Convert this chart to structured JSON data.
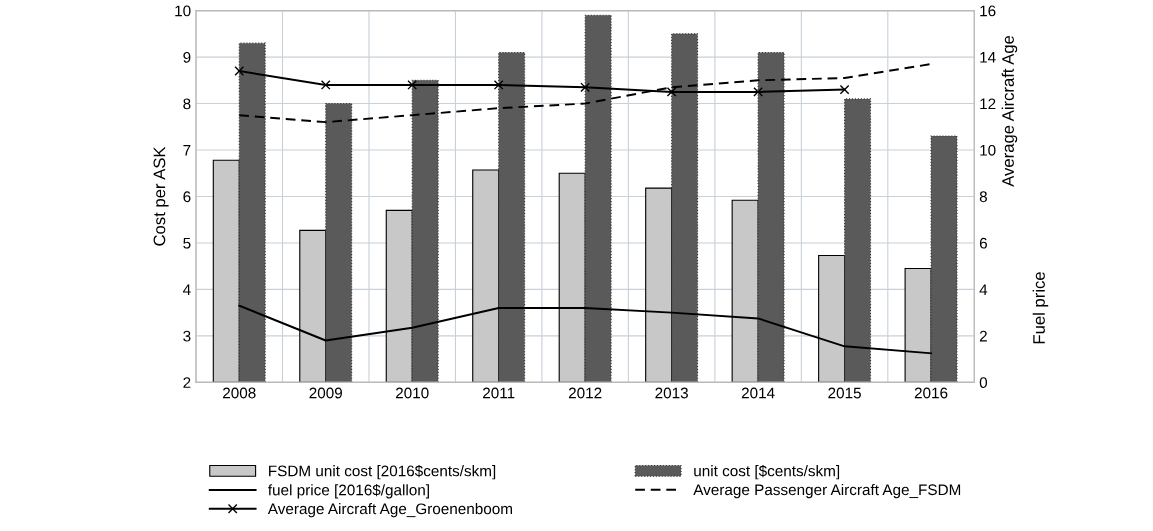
{
  "chart_data": {
    "type": "bar",
    "categories": [
      "2008",
      "2009",
      "2010",
      "2011",
      "2012",
      "2013",
      "2014",
      "2015",
      "2016"
    ],
    "ylabel": "Cost per ASK",
    "y2label": "Average Aircraft Age",
    "annotations": [
      "Fuel price"
    ],
    "ylim": [
      2,
      10
    ],
    "yticks": [
      2,
      3,
      4,
      5,
      6,
      7,
      8,
      9,
      10
    ],
    "y2lim": [
      0,
      16
    ],
    "y2ticks": [
      0,
      2,
      4,
      6,
      8,
      10,
      12,
      14,
      16
    ],
    "grid": true,
    "legend": "bottom",
    "series": [
      {
        "name": "FSDM unit cost [2016$cents/skm]",
        "color": "#c8c8c8",
        "values": [
          6.78,
          5.27,
          5.7,
          6.57,
          6.5,
          6.18,
          5.92,
          4.73,
          4.45
        ]
      },
      {
        "name": "unit cost [$cents/skm]",
        "color": "#5a5a5a",
        "values": [
          9.3,
          8.0,
          8.5,
          9.1,
          9.9,
          9.5,
          9.1,
          8.1,
          7.3
        ]
      },
      {
        "name": "fuel price [2016$/gallon]",
        "type": "line",
        "axis": "y2",
        "color": "#000000",
        "line_style": "solid",
        "marker": "none",
        "values": [
          3.3,
          1.8,
          2.35,
          3.2,
          3.2,
          3.0,
          2.75,
          1.55,
          1.25
        ]
      },
      {
        "name": "Average Passenger Aircraft Age_FSDM",
        "type": "line",
        "axis": "y2",
        "color": "#000000",
        "line_style": "dashed",
        "marker": "none",
        "values": [
          11.5,
          11.2,
          11.5,
          11.8,
          12.0,
          12.7,
          13.0,
          13.1,
          13.7
        ]
      },
      {
        "name": "Average Aircraft Age_Groenenboom",
        "type": "line",
        "axis": "y2",
        "color": "#000000",
        "line_style": "solid",
        "marker": "cross",
        "values": [
          13.4,
          12.8,
          12.8,
          12.8,
          12.7,
          12.5,
          12.5,
          12.6,
          null
        ]
      }
    ]
  }
}
